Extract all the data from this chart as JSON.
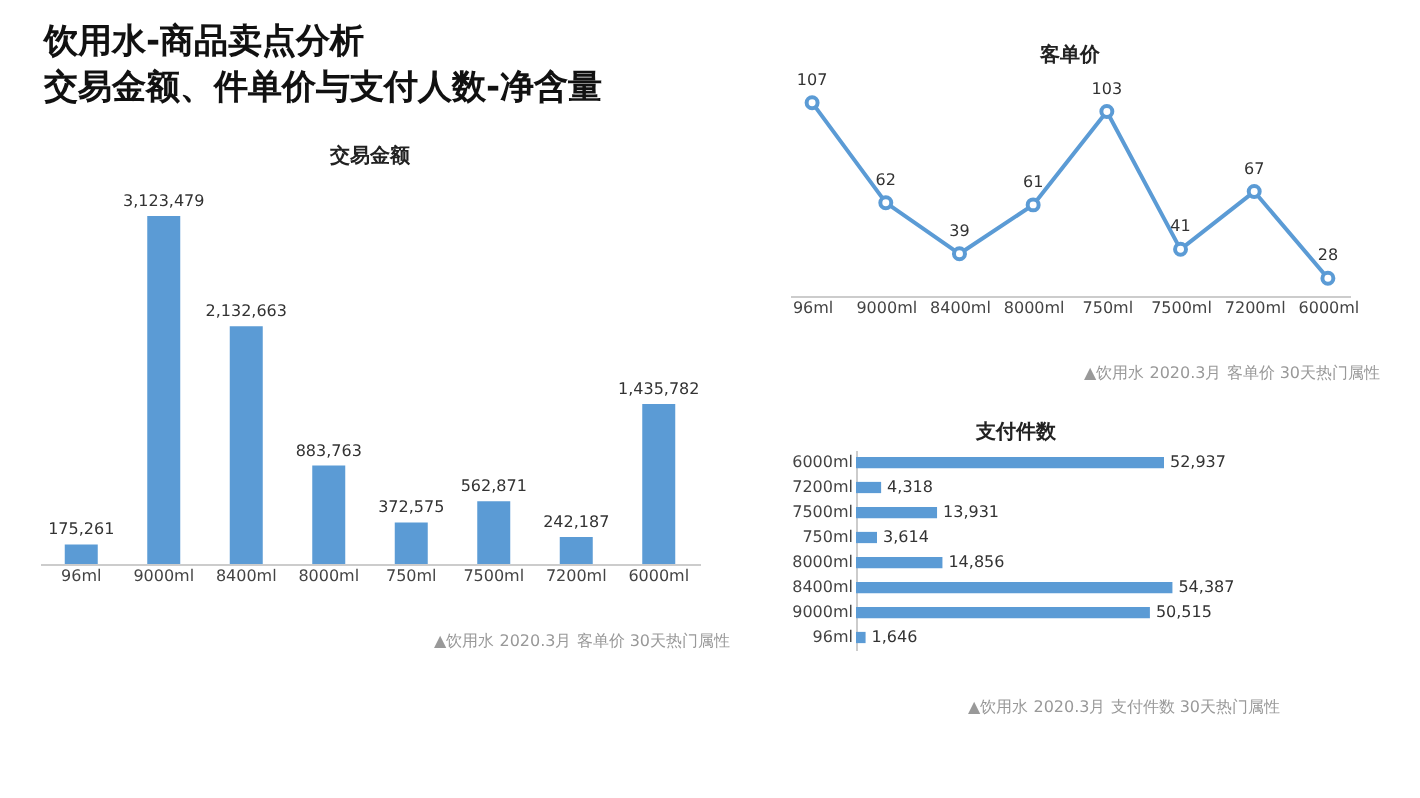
{
  "chart_data": [
    {
      "type": "other",
      "title": "饮用水-商品卖点分析",
      "subtitle": "交易金额、件单价与支付人数-净含量"
    },
    {
      "type": "bar",
      "title": "交易金额",
      "categories": [
        "96ml",
        "9000ml",
        "8400ml",
        "8000ml",
        "750ml",
        "7500ml",
        "7200ml",
        "6000ml"
      ],
      "values": [
        175261,
        3123479,
        2132663,
        883763,
        372575,
        562871,
        242187,
        1435782
      ],
      "color": "#5b9bd5",
      "tick_labels": "x",
      "value_labels": [
        "175,261",
        "3,123,479",
        "2,132,663",
        "883,763",
        "372,575",
        "562,871",
        "242,187",
        "1,435,782"
      ],
      "annotations": [
        "▲饮用水 2020.3月 客单价 30天热门属性"
      ]
    },
    {
      "type": "line",
      "title": "客单价",
      "categories": [
        "96ml",
        "9000ml",
        "8400ml",
        "8000ml",
        "750ml",
        "7500ml",
        "7200ml",
        "6000ml"
      ],
      "values": [
        107,
        62,
        39,
        61,
        103,
        41,
        67,
        28
      ],
      "color": "#5b9bd5",
      "marker": "circle",
      "data_labels": true,
      "tick_labels": "x",
      "annotations": [
        "▲饮用水 2020.3月 客单价 30天热门属性"
      ]
    },
    {
      "type": "bar",
      "orientation": "horizontal",
      "title": "支付件数",
      "categories": [
        "6000ml",
        "7200ml",
        "7500ml",
        "750ml",
        "8000ml",
        "8400ml",
        "9000ml",
        "96ml"
      ],
      "values": [
        52937,
        4318,
        13931,
        3614,
        14856,
        54387,
        50515,
        1646
      ],
      "color": "#5b9bd5",
      "tick_labels": "y",
      "value_labels": [
        "52,937",
        "4,318",
        "13,931",
        "3,614",
        "14,856",
        "54,387",
        "50,515",
        "1,646"
      ],
      "annotations": [
        "▲饮用水 2020.3月 支付件数 30天热门属性"
      ]
    }
  ]
}
